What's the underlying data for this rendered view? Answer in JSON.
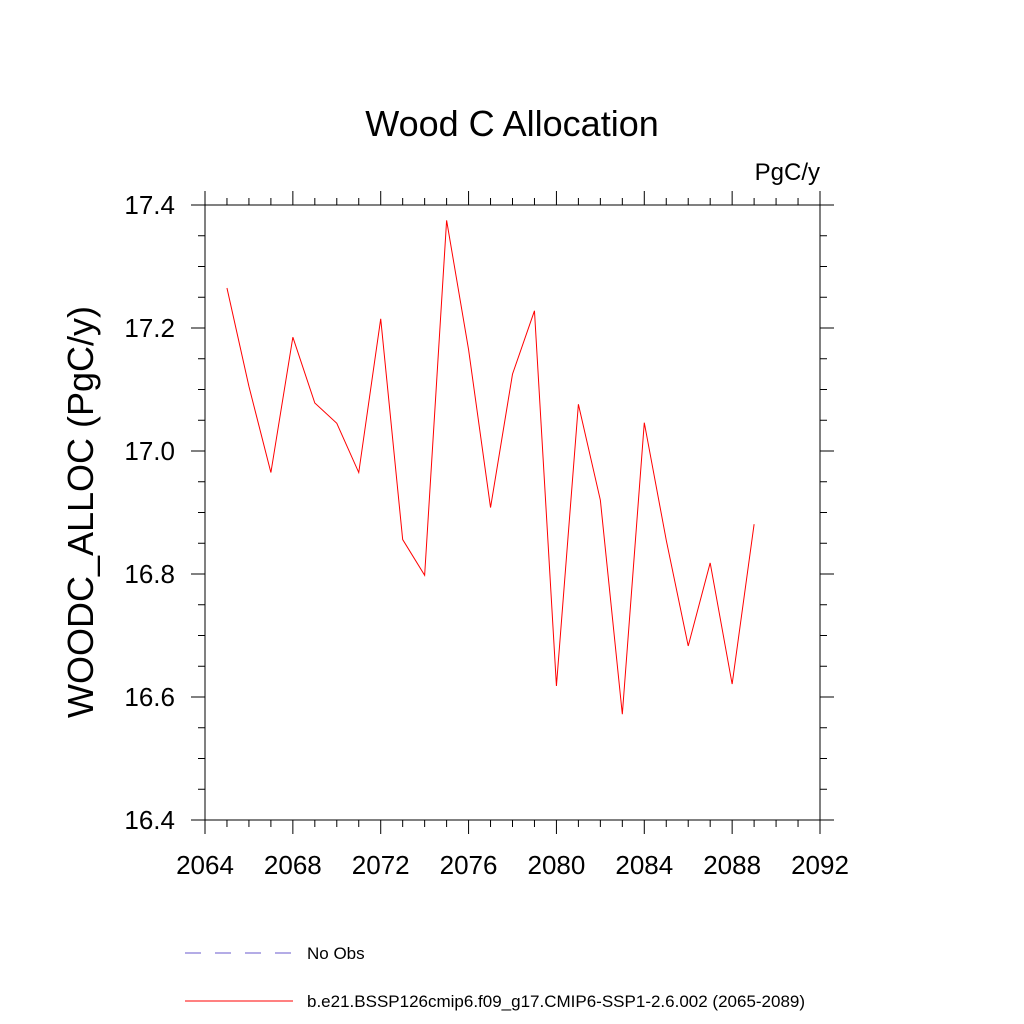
{
  "chart_data": {
    "type": "line",
    "title": "Wood C Allocation",
    "units": "PgC/y",
    "xlabel": "",
    "ylabel": "WOODC_ALLOC  (PgC/y)",
    "xlim": [
      2064,
      2092
    ],
    "ylim": [
      16.4,
      17.4
    ],
    "xticks": [
      "2064",
      "2068",
      "2072",
      "2076",
      "2080",
      "2084",
      "2088",
      "2092"
    ],
    "xtick_values": [
      2064,
      2068,
      2072,
      2076,
      2080,
      2084,
      2088,
      2092
    ],
    "yticks": [
      "16.4",
      "16.6",
      "16.8",
      "17.0",
      "17.2",
      "17.4"
    ],
    "ytick_values": [
      16.4,
      16.6,
      16.8,
      17.0,
      17.2,
      17.4
    ],
    "grid": false,
    "legend_position": "bottom",
    "series": [
      {
        "name": "b.e21.BSSP126cmip6.f09_g17.CMIP6-SSP1-2.6.002 (2065-2089)",
        "color": "#ff0000",
        "style": "solid",
        "x": [
          2065,
          2066,
          2067,
          2068,
          2069,
          2070,
          2071,
          2072,
          2073,
          2074,
          2075,
          2076,
          2077,
          2078,
          2079,
          2080,
          2081,
          2082,
          2083,
          2084,
          2085,
          2086,
          2087,
          2088,
          2089
        ],
        "y": [
          17.265,
          17.105,
          16.965,
          17.185,
          17.078,
          17.045,
          16.965,
          17.215,
          16.856,
          16.798,
          17.375,
          17.165,
          16.908,
          17.125,
          17.228,
          16.618,
          17.076,
          16.92,
          16.572,
          17.046,
          16.855,
          16.683,
          16.818,
          16.621,
          16.881
        ]
      }
    ],
    "legend": [
      {
        "label": "No Obs",
        "color": "#6a5acd",
        "style": "dashed"
      },
      {
        "label": "b.e21.BSSP126cmip6.f09_g17.CMIP6-SSP1-2.6.002 (2065-2089)",
        "color": "#ff0000",
        "style": "solid"
      }
    ]
  }
}
